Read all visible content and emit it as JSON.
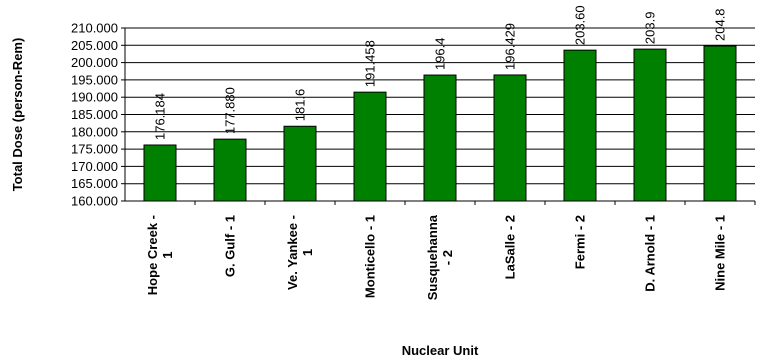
{
  "chart_data": {
    "type": "bar",
    "categories": [
      "Hope Creek - 1",
      "G. Gulf - 1",
      "Ve. Yankee - 1",
      "Monticello - 1",
      "Susquehanna - 2",
      "LaSalle - 2",
      "Fermi - 2",
      "D. Arnold - 1",
      "Nine Mile - 1"
    ],
    "category_lines": [
      [
        "Hope Creek -",
        "1"
      ],
      [
        "G. Gulf - 1"
      ],
      [
        "Ve. Yankee -",
        "1"
      ],
      [
        "Monticello - 1"
      ],
      [
        "Susquehanna",
        "- 2"
      ],
      [
        "LaSalle - 2"
      ],
      [
        "Fermi - 2"
      ],
      [
        "D. Arnold - 1"
      ],
      [
        "Nine Mile - 1"
      ]
    ],
    "values": [
      176.184,
      177.88,
      181.6,
      191.458,
      196.4,
      196.429,
      203.6,
      203.9,
      204.8
    ],
    "data_labels": [
      "176.184",
      "177.880",
      "181.6",
      "191.458",
      "196.4",
      "196.429",
      "203.60",
      "203.9",
      "204.8"
    ],
    "xlabel": "Nuclear Unit",
    "ylabel": "Total Dose (person-Rem)",
    "ylim": [
      160,
      210
    ],
    "yticks": [
      160,
      165,
      170,
      175,
      180,
      185,
      190,
      195,
      200,
      205,
      210
    ],
    "ytick_labels": [
      "160.000",
      "165.000",
      "170.000",
      "175.000",
      "180.000",
      "185.000",
      "190.000",
      "195.000",
      "200.000",
      "205.000",
      "210.000"
    ],
    "bar_color": "#008000",
    "grid": true,
    "legend": "none"
  }
}
